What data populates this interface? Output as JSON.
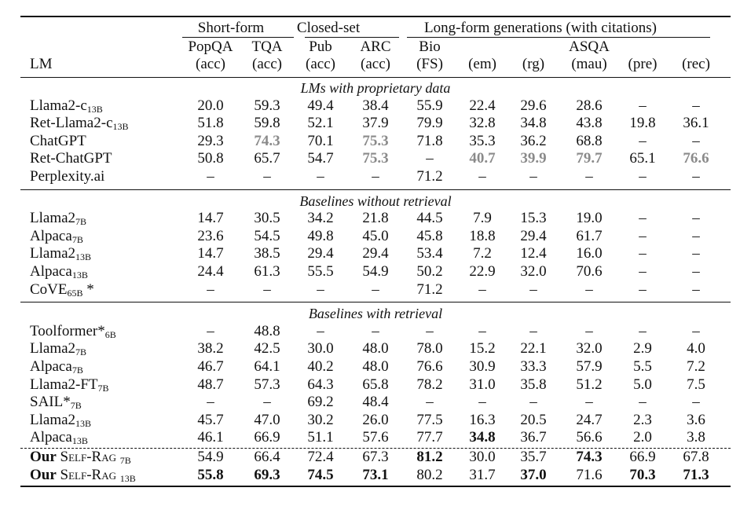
{
  "header": {
    "groups": [
      {
        "label": "Short-form",
        "center": 294
      },
      {
        "label": "Closed-set",
        "center": 418
      },
      {
        "label": "Long-form generations (with citations)",
        "center": 688
      }
    ],
    "lm_label": "LM",
    "col_titles": [
      {
        "col": 0,
        "text": "PopQA"
      },
      {
        "col": 1,
        "text": "TQA"
      },
      {
        "col": 2,
        "text": "Pub"
      },
      {
        "col": 3,
        "text": "ARC"
      },
      {
        "col": 4,
        "text": "Bio"
      },
      {
        "col": 7,
        "text": "ASQA"
      }
    ],
    "col_units": [
      "(acc)",
      "(acc)",
      "(acc)",
      "(acc)",
      "(FS)",
      "(em)",
      "(rg)",
      "(mau)",
      "(pre)",
      "(rec)"
    ]
  },
  "sections": [
    {
      "title": "LMs with proprietary data",
      "rows": [
        {
          "name": "Llama2-c",
          "sub": "13B",
          "values": [
            "20.0",
            "59.3",
            "49.4",
            "38.4",
            "55.9",
            "22.4",
            "29.6",
            "28.6",
            "–",
            "–"
          ],
          "styles": {}
        },
        {
          "name": "Ret-Llama2-c",
          "sub": "13B",
          "values": [
            "51.8",
            "59.8",
            "52.1",
            "37.9",
            "79.9",
            "32.8",
            "34.8",
            "43.8",
            "19.8",
            "36.1"
          ],
          "styles": {}
        },
        {
          "name": "ChatGPT",
          "sub": "",
          "values": [
            "29.3",
            "74.3",
            "70.1",
            "75.3",
            "71.8",
            "35.3",
            "36.2",
            "68.8",
            "–",
            "–"
          ],
          "styles": {
            "1": "g",
            "3": "g"
          }
        },
        {
          "name": "Ret-ChatGPT",
          "sub": "",
          "values": [
            "50.8",
            "65.7",
            "54.7",
            "75.3",
            "–",
            "40.7",
            "39.9",
            "79.7",
            "65.1",
            "76.6"
          ],
          "styles": {
            "3": "g",
            "5": "g",
            "6": "g",
            "7": "g",
            "9": "g"
          }
        },
        {
          "name": "Perplexity.ai",
          "sub": "",
          "values": [
            "–",
            "–",
            "–",
            "–",
            "71.2",
            "–",
            "–",
            "–",
            "–",
            "–"
          ],
          "styles": {}
        }
      ]
    },
    {
      "title": "Baselines without retrieval",
      "rows": [
        {
          "name": "Llama2",
          "sub": "7B",
          "values": [
            "14.7",
            "30.5",
            "34.2",
            "21.8",
            "44.5",
            "7.9",
            "15.3",
            "19.0",
            "–",
            "–"
          ],
          "styles": {}
        },
        {
          "name": "Alpaca",
          "sub": "7B",
          "values": [
            "23.6",
            "54.5",
            "49.8",
            "45.0",
            "45.8",
            "18.8",
            "29.4",
            "61.7",
            "–",
            "–"
          ],
          "styles": {}
        },
        {
          "name": "Llama2",
          "sub": "13B",
          "values": [
            "14.7",
            "38.5",
            "29.4",
            "29.4",
            "53.4",
            "7.2",
            "12.4",
            "16.0",
            "–",
            "–"
          ],
          "styles": {}
        },
        {
          "name": "Alpaca",
          "sub": "13B",
          "values": [
            "24.4",
            "61.3",
            "55.5",
            "54.9",
            "50.2",
            "22.9",
            "32.0",
            "70.6",
            "–",
            "–"
          ],
          "styles": {}
        },
        {
          "name": "CoVE",
          "sub": "65B",
          "suffix": " *",
          "values": [
            "–",
            "–",
            "–",
            "–",
            "71.2",
            "–",
            "–",
            "–",
            "–",
            "–"
          ],
          "styles": {}
        }
      ]
    },
    {
      "title": "Baselines with retrieval",
      "rows": [
        {
          "name": "Toolformer*",
          "sub": "6B",
          "values": [
            "–",
            "48.8",
            "–",
            "–",
            "–",
            "–",
            "–",
            "–",
            "–",
            "–"
          ],
          "styles": {}
        },
        {
          "name": "Llama2",
          "sub": "7B",
          "values": [
            "38.2",
            "42.5",
            "30.0",
            "48.0",
            "78.0",
            "15.2",
            "22.1",
            "32.0",
            "2.9",
            "4.0"
          ],
          "styles": {}
        },
        {
          "name": "Alpaca",
          "sub": "7B",
          "values": [
            "46.7",
            "64.1",
            "40.2",
            "48.0",
            "76.6",
            "30.9",
            "33.3",
            "57.9",
            "5.5",
            "7.2"
          ],
          "styles": {}
        },
        {
          "name": "Llama2-FT",
          "sub": "7B",
          "values": [
            "48.7",
            "57.3",
            "64.3",
            "65.8",
            "78.2",
            "31.0",
            "35.8",
            "51.2",
            "5.0",
            "7.5"
          ],
          "styles": {}
        },
        {
          "name": "SAIL*",
          "sub": "7B",
          "values": [
            "–",
            "–",
            "69.2",
            "48.4",
            "–",
            "–",
            "–",
            "–",
            "–",
            "–"
          ],
          "styles": {}
        },
        {
          "name": "Llama2",
          "sub": "13B",
          "values": [
            "45.7",
            "47.0",
            "30.2",
            "26.0",
            "77.5",
            "16.3",
            "20.5",
            "24.7",
            "2.3",
            "3.6"
          ],
          "styles": {}
        },
        {
          "name": "Alpaca",
          "sub": "13B",
          "values": [
            "46.1",
            "66.9",
            "51.1",
            "57.6",
            "77.7",
            "34.8",
            "36.7",
            "56.6",
            "2.0",
            "3.8"
          ],
          "styles": {
            "5": "b"
          }
        }
      ]
    }
  ],
  "ours": [
    {
      "prefix": "Our",
      "name": "Self-Rag",
      "sub": "7B",
      "values": [
        "54.9",
        "66.4",
        "72.4",
        "67.3",
        "81.2",
        "30.0",
        "35.7",
        "74.3",
        "66.9",
        "67.8"
      ],
      "styles": {
        "4": "b",
        "7": "b"
      }
    },
    {
      "prefix": "Our",
      "name": "Self-Rag",
      "sub": "13B",
      "values": [
        "55.8",
        "69.3",
        "74.5",
        "73.1",
        "80.2",
        "31.7",
        "37.0",
        "71.6",
        "70.3",
        "71.3"
      ],
      "styles": {
        "0": "b",
        "1": "b",
        "2": "b",
        "3": "b",
        "6": "b",
        "8": "b",
        "9": "b"
      }
    }
  ]
}
